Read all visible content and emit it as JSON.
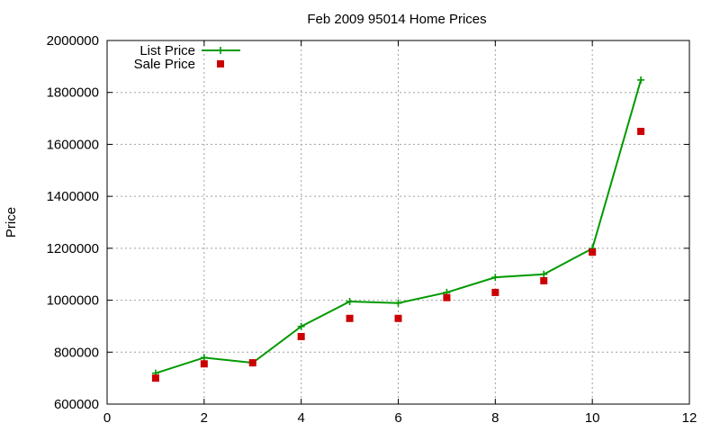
{
  "chart_data": {
    "type": "line",
    "title": "Feb 2009 95014 Home Prices",
    "xlabel": "",
    "ylabel": "Price",
    "xlim": [
      0,
      12
    ],
    "ylim": [
      600000,
      2000000
    ],
    "xticks": [
      "0",
      "2",
      "4",
      "6",
      "8",
      "10",
      "12"
    ],
    "yticks": [
      "600000",
      "800000",
      "1000000",
      "1200000",
      "1400000",
      "1600000",
      "1800000",
      "2000000"
    ],
    "grid": true,
    "legend_position": "top-left",
    "series": [
      {
        "name": "List Price",
        "style": "line with plus markers",
        "color": "#009900",
        "x": [
          1,
          2,
          3,
          4,
          5,
          6,
          7,
          8,
          9,
          10,
          11
        ],
        "values": [
          719000,
          779000,
          759000,
          899000,
          995000,
          989000,
          1030000,
          1088000,
          1100000,
          1199000,
          1848000
        ]
      },
      {
        "name": "Sale Price",
        "style": "square markers",
        "color": "#cc0000",
        "x": [
          1,
          2,
          3,
          4,
          5,
          6,
          7,
          8,
          9,
          10,
          11
        ],
        "values": [
          700000,
          755000,
          759000,
          860000,
          930000,
          930000,
          1010000,
          1030000,
          1075000,
          1185000,
          1650000
        ]
      }
    ]
  }
}
